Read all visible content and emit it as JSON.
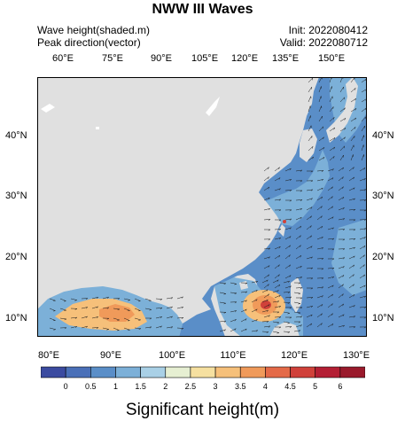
{
  "title": "NWW III  Waves",
  "header": {
    "left_line1": "Wave height(shaded.m)",
    "left_line2": "Peak direction(vector)",
    "right_line1": "Init: 2022080412",
    "right_line2": "Valid: 2022080712"
  },
  "axes": {
    "top_ticks": [
      "60°E",
      "75°E",
      "90°E",
      "105°E",
      "120°E",
      "135°E",
      "150°E"
    ],
    "bottom_ticks": [
      "80°E",
      "90°E",
      "100°E",
      "110°E",
      "120°E",
      "130°E"
    ],
    "left_ticks": [
      "40°N",
      "30°N",
      "20°N",
      "10°N"
    ],
    "right_ticks": [
      "40°N",
      "30°N",
      "20°N",
      "10°N"
    ]
  },
  "colorbar": {
    "labels": [
      "0",
      "0.5",
      "1",
      "1.5",
      "2",
      "2.5",
      "3",
      "3.5",
      "4",
      "4.5",
      "5",
      "6"
    ],
    "colors": [
      "#3b4ba0",
      "#4a70b8",
      "#5a8ec8",
      "#7cb0d8",
      "#a9d0e6",
      "#e6efd2",
      "#f6e0a0",
      "#f6c07a",
      "#f09a5a",
      "#e46a48",
      "#d0413a",
      "#b41f34",
      "#9a1a2c"
    ],
    "title": "Significant height(m)"
  },
  "map_colors": {
    "land": "#e0e0e0",
    "ocean_low": "#5a8ec8",
    "ocean_mid": "#7cb0d8",
    "ocean_high": "#f6c07a",
    "ocean_peak": "#d0413a"
  }
}
